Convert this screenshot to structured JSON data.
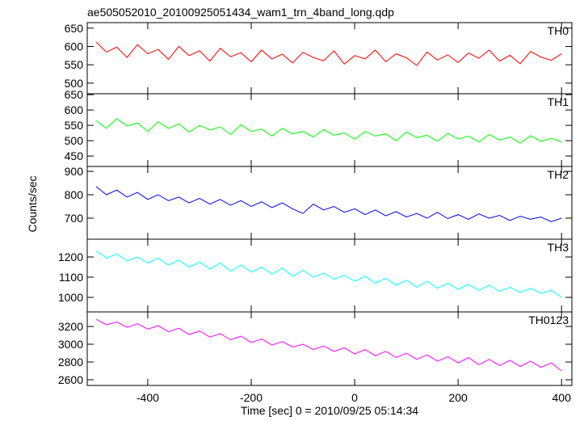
{
  "chart_data": [
    {
      "type": "line",
      "title": "ae505052010_20100925051434_wam1_trn_4band_long.qdp",
      "x": [
        -500,
        -480,
        -460,
        -440,
        -420,
        -400,
        -380,
        -360,
        -340,
        -320,
        -300,
        -280,
        -260,
        -240,
        -220,
        -200,
        -180,
        -160,
        -140,
        -120,
        -100,
        -80,
        -60,
        -40,
        -20,
        0,
        20,
        40,
        60,
        80,
        100,
        120,
        140,
        160,
        180,
        200,
        220,
        240,
        260,
        280,
        300,
        320,
        340,
        360,
        380,
        400
      ],
      "series": [
        {
          "name": "TH0",
          "color": "#ff0000",
          "values": [
            612,
            585,
            598,
            570,
            605,
            580,
            592,
            565,
            600,
            575,
            588,
            560,
            595,
            572,
            583,
            558,
            590,
            566,
            579,
            555,
            584,
            570,
            561,
            588,
            552,
            575,
            566,
            590,
            558,
            580,
            569,
            548,
            585,
            563,
            577,
            556,
            582,
            568,
            590,
            560,
            576,
            553,
            586,
            571,
            562,
            580
          ]
        }
      ],
      "xlim": [
        -517,
        420
      ],
      "ylim": [
        471,
        665
      ],
      "yticks": [
        500,
        550,
        600,
        650
      ]
    },
    {
      "type": "line",
      "x": [
        -500,
        -480,
        -460,
        -440,
        -420,
        -400,
        -380,
        -360,
        -340,
        -320,
        -300,
        -280,
        -260,
        -240,
        -220,
        -200,
        -180,
        -160,
        -140,
        -120,
        -100,
        -80,
        -60,
        -40,
        -20,
        0,
        20,
        40,
        60,
        80,
        100,
        120,
        140,
        160,
        180,
        200,
        220,
        240,
        260,
        280,
        300,
        320,
        340,
        360,
        380,
        400
      ],
      "series": [
        {
          "name": "TH1",
          "color": "#00ff00",
          "values": [
            565,
            540,
            572,
            548,
            558,
            530,
            562,
            540,
            555,
            528,
            550,
            535,
            545,
            520,
            552,
            530,
            538,
            515,
            540,
            522,
            530,
            512,
            536,
            518,
            525,
            505,
            530,
            515,
            522,
            500,
            528,
            510,
            518,
            498,
            524,
            505,
            515,
            496,
            520,
            502,
            512,
            492,
            516,
            498,
            508,
            495
          ]
        }
      ],
      "xlim": [
        -517,
        420
      ],
      "ylim": [
        416,
        653
      ],
      "yticks": [
        450,
        500,
        550,
        600,
        650
      ]
    },
    {
      "type": "line",
      "ylabel": "Counts/sec",
      "x": [
        -500,
        -480,
        -460,
        -440,
        -420,
        -400,
        -380,
        -360,
        -340,
        -320,
        -300,
        -280,
        -260,
        -240,
        -220,
        -200,
        -180,
        -160,
        -140,
        -120,
        -100,
        -80,
        -60,
        -40,
        -20,
        0,
        20,
        40,
        60,
        80,
        100,
        120,
        140,
        160,
        180,
        200,
        220,
        240,
        260,
        280,
        300,
        320,
        340,
        360,
        380,
        400
      ],
      "series": [
        {
          "name": "TH2",
          "color": "#0000ff",
          "values": [
            835,
            800,
            820,
            790,
            810,
            780,
            800,
            775,
            790,
            765,
            785,
            760,
            780,
            755,
            775,
            750,
            770,
            745,
            765,
            740,
            720,
            760,
            735,
            750,
            725,
            740,
            715,
            735,
            710,
            728,
            705,
            720,
            700,
            725,
            698,
            715,
            695,
            718,
            700,
            712,
            690,
            708,
            695,
            705,
            685,
            700
          ]
        }
      ],
      "xlim": [
        -517,
        420
      ],
      "ylim": [
        610,
        921
      ],
      "yticks": [
        700,
        800,
        900
      ]
    },
    {
      "type": "line",
      "x": [
        -500,
        -480,
        -460,
        -440,
        -420,
        -400,
        -380,
        -360,
        -340,
        -320,
        -300,
        -280,
        -260,
        -240,
        -220,
        -200,
        -180,
        -160,
        -140,
        -120,
        -100,
        -80,
        -60,
        -40,
        -20,
        0,
        20,
        40,
        60,
        80,
        100,
        120,
        140,
        160,
        180,
        200,
        220,
        240,
        260,
        280,
        300,
        320,
        340,
        360,
        380,
        400
      ],
      "series": [
        {
          "name": "TH3",
          "color": "#00ffff",
          "values": [
            1230,
            1195,
            1215,
            1180,
            1200,
            1170,
            1195,
            1160,
            1185,
            1150,
            1175,
            1140,
            1170,
            1130,
            1160,
            1125,
            1150,
            1115,
            1145,
            1105,
            1135,
            1100,
            1120,
            1090,
            1110,
            1080,
            1105,
            1070,
            1095,
            1060,
            1085,
            1050,
            1080,
            1045,
            1070,
            1040,
            1065,
            1035,
            1060,
            1030,
            1050,
            1025,
            1045,
            1020,
            1035,
            1000
          ]
        }
      ],
      "xlim": [
        -517,
        420
      ],
      "ylim": [
        928,
        1288
      ],
      "yticks": [
        1000,
        1100,
        1200
      ]
    },
    {
      "type": "line",
      "xlabel": "Time [sec] 0 = 2010/09/25 05:14:34",
      "x": [
        -500,
        -480,
        -460,
        -440,
        -420,
        -400,
        -380,
        -360,
        -340,
        -320,
        -300,
        -280,
        -260,
        -240,
        -220,
        -200,
        -180,
        -160,
        -140,
        -120,
        -100,
        -80,
        -60,
        -40,
        -20,
        0,
        20,
        40,
        60,
        80,
        100,
        120,
        140,
        160,
        180,
        200,
        220,
        240,
        260,
        280,
        300,
        320,
        340,
        360,
        380,
        400
      ],
      "series": [
        {
          "name": "TH0123",
          "color": "#ff00ff",
          "values": [
            3280,
            3220,
            3250,
            3190,
            3230,
            3170,
            3210,
            3140,
            3180,
            3110,
            3150,
            3080,
            3120,
            3050,
            3090,
            3020,
            3060,
            2990,
            3030,
            2970,
            3000,
            2940,
            2980,
            2920,
            2960,
            2890,
            2940,
            2870,
            2920,
            2850,
            2900,
            2830,
            2880,
            2810,
            2860,
            2790,
            2850,
            2770,
            2830,
            2760,
            2820,
            2750,
            2810,
            2740,
            2790,
            2700
          ]
        }
      ],
      "xlim": [
        -517,
        420
      ],
      "ylim": [
        2536,
        3364
      ],
      "yticks": [
        2600,
        2800,
        3000,
        3200
      ],
      "xticks": [
        -400,
        -200,
        0,
        200,
        400
      ]
    }
  ]
}
